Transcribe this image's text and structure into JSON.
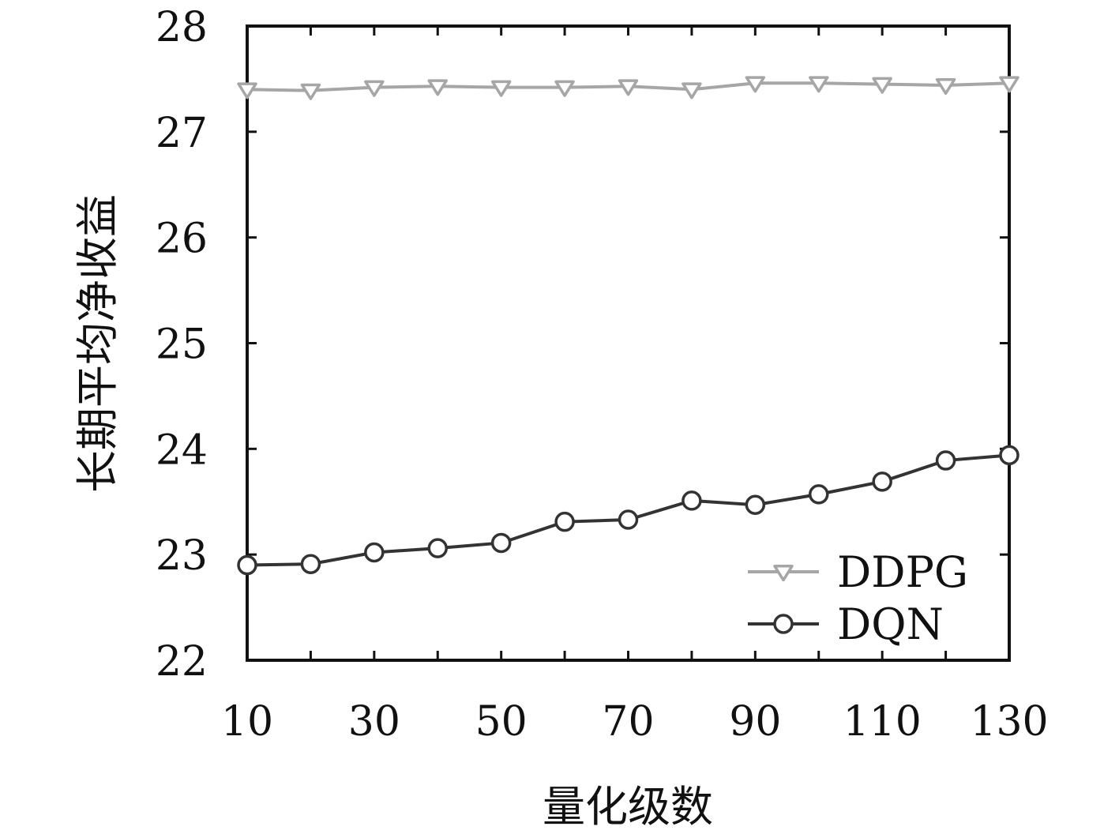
{
  "chart_data": {
    "type": "line",
    "title": "",
    "xlabel": "量化级数",
    "ylabel": "长期平均净收益",
    "xlim": [
      10,
      130
    ],
    "ylim": [
      22,
      28
    ],
    "xticks": [
      10,
      30,
      50,
      70,
      90,
      110,
      130
    ],
    "yticks": [
      22,
      23,
      24,
      25,
      26,
      27,
      28
    ],
    "x": [
      10,
      20,
      30,
      40,
      50,
      60,
      70,
      80,
      90,
      100,
      110,
      120,
      130
    ],
    "grid": false,
    "legend_position": "bottom-right",
    "series": [
      {
        "name": "DDPG",
        "color": "#a6a6a6",
        "marker": "triangle-down",
        "values": [
          27.4,
          27.39,
          27.42,
          27.43,
          27.42,
          27.42,
          27.43,
          27.4,
          27.46,
          27.46,
          27.45,
          27.44,
          27.46
        ]
      },
      {
        "name": "DQN",
        "color": "#333333",
        "marker": "circle",
        "values": [
          22.9,
          22.91,
          23.02,
          23.06,
          23.11,
          23.31,
          23.33,
          23.51,
          23.47,
          23.57,
          23.69,
          23.89,
          23.94
        ]
      }
    ]
  }
}
